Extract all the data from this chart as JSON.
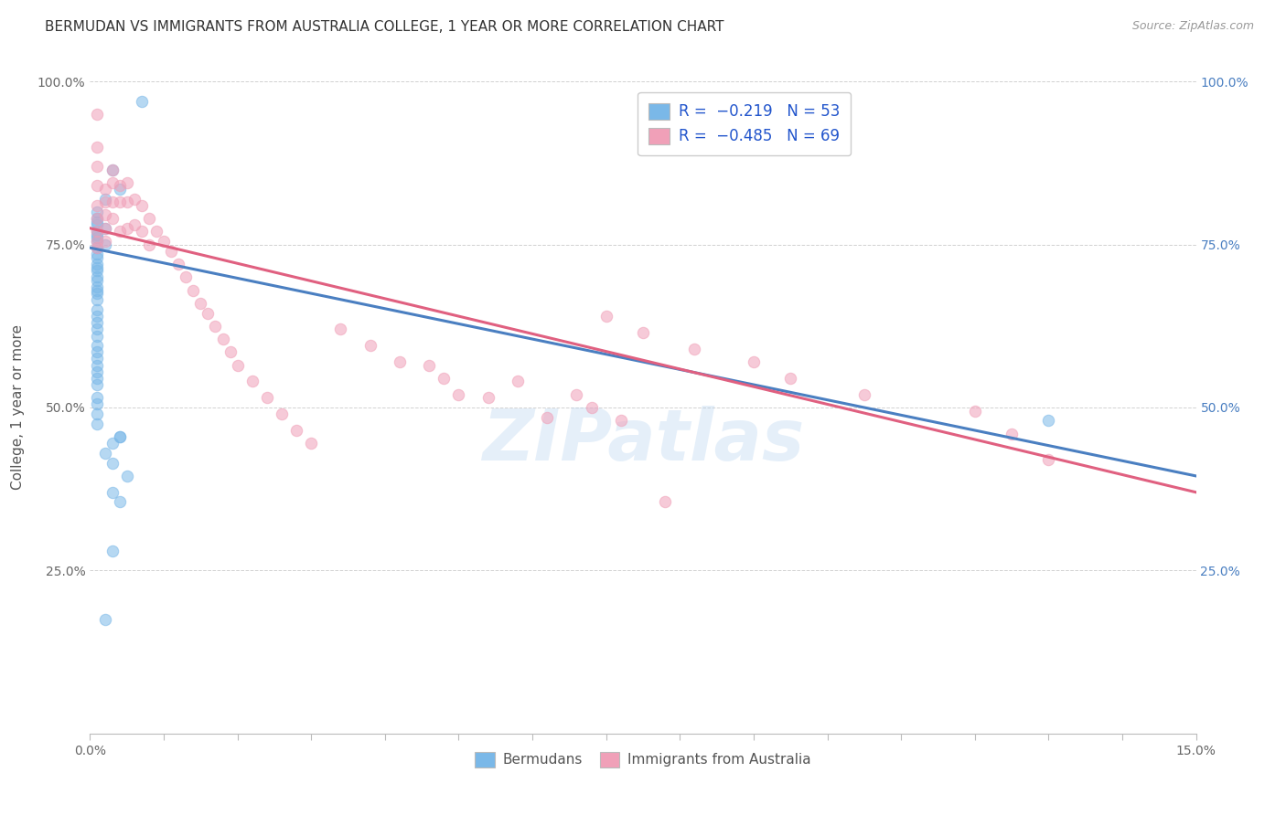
{
  "title": "BERMUDAN VS IMMIGRANTS FROM AUSTRALIA COLLEGE, 1 YEAR OR MORE CORRELATION CHART",
  "source": "Source: ZipAtlas.com",
  "ylabel": "College, 1 year or more",
  "xlim": [
    0.0,
    0.15
  ],
  "ylim": [
    0.0,
    1.0
  ],
  "blue_scatter_x": [
    0.007,
    0.003,
    0.004,
    0.002,
    0.001,
    0.001,
    0.001,
    0.001,
    0.002,
    0.001,
    0.001,
    0.001,
    0.001,
    0.002,
    0.001,
    0.001,
    0.001,
    0.001,
    0.001,
    0.001,
    0.001,
    0.001,
    0.001,
    0.001,
    0.001,
    0.001,
    0.001,
    0.001,
    0.001,
    0.001,
    0.001,
    0.001,
    0.001,
    0.001,
    0.001,
    0.001,
    0.001,
    0.001,
    0.001,
    0.001,
    0.001,
    0.001,
    0.004,
    0.003,
    0.002,
    0.003,
    0.005,
    0.003,
    0.004,
    0.003,
    0.13,
    0.004,
    0.002
  ],
  "blue_scatter_y": [
    0.97,
    0.865,
    0.835,
    0.82,
    0.8,
    0.79,
    0.785,
    0.78,
    0.775,
    0.77,
    0.765,
    0.76,
    0.755,
    0.75,
    0.745,
    0.735,
    0.73,
    0.72,
    0.715,
    0.71,
    0.7,
    0.695,
    0.685,
    0.68,
    0.675,
    0.665,
    0.65,
    0.64,
    0.63,
    0.62,
    0.61,
    0.595,
    0.585,
    0.575,
    0.565,
    0.555,
    0.545,
    0.535,
    0.515,
    0.505,
    0.49,
    0.475,
    0.455,
    0.445,
    0.43,
    0.415,
    0.395,
    0.37,
    0.355,
    0.28,
    0.48,
    0.455,
    0.175
  ],
  "pink_scatter_x": [
    0.001,
    0.001,
    0.001,
    0.001,
    0.001,
    0.001,
    0.001,
    0.001,
    0.001,
    0.002,
    0.002,
    0.002,
    0.002,
    0.002,
    0.003,
    0.003,
    0.003,
    0.003,
    0.004,
    0.004,
    0.004,
    0.005,
    0.005,
    0.005,
    0.006,
    0.006,
    0.007,
    0.007,
    0.008,
    0.008,
    0.009,
    0.01,
    0.011,
    0.012,
    0.013,
    0.014,
    0.015,
    0.016,
    0.017,
    0.018,
    0.019,
    0.02,
    0.022,
    0.024,
    0.026,
    0.028,
    0.03,
    0.034,
    0.038,
    0.042,
    0.048,
    0.054,
    0.062,
    0.07,
    0.075,
    0.082,
    0.09,
    0.095,
    0.105,
    0.12,
    0.125,
    0.13,
    0.046,
    0.058,
    0.066,
    0.05,
    0.068,
    0.072,
    0.078
  ],
  "pink_scatter_y": [
    0.95,
    0.9,
    0.87,
    0.84,
    0.81,
    0.79,
    0.77,
    0.755,
    0.745,
    0.835,
    0.815,
    0.795,
    0.775,
    0.755,
    0.865,
    0.845,
    0.815,
    0.79,
    0.84,
    0.815,
    0.77,
    0.845,
    0.815,
    0.775,
    0.82,
    0.78,
    0.81,
    0.77,
    0.79,
    0.75,
    0.77,
    0.755,
    0.74,
    0.72,
    0.7,
    0.68,
    0.66,
    0.645,
    0.625,
    0.605,
    0.585,
    0.565,
    0.54,
    0.515,
    0.49,
    0.465,
    0.445,
    0.62,
    0.595,
    0.57,
    0.545,
    0.515,
    0.485,
    0.64,
    0.615,
    0.59,
    0.57,
    0.545,
    0.52,
    0.495,
    0.46,
    0.42,
    0.565,
    0.54,
    0.52,
    0.52,
    0.5,
    0.48,
    0.355
  ],
  "blue_line_x": [
    0.0,
    0.15
  ],
  "blue_line_y": [
    0.745,
    0.395
  ],
  "pink_line_x": [
    0.0,
    0.15
  ],
  "pink_line_y": [
    0.775,
    0.37
  ],
  "blue_color": "#7ab8e8",
  "pink_color": "#f0a0b8",
  "blue_line_color": "#4a7fc1",
  "pink_line_color": "#e06080",
  "watermark": "ZIPatlas",
  "background_color": "#ffffff",
  "grid_color": "#cccccc",
  "legend_r1": "R =  -0.219   N = 53",
  "legend_r2": "R =  -0.485   N = 69"
}
